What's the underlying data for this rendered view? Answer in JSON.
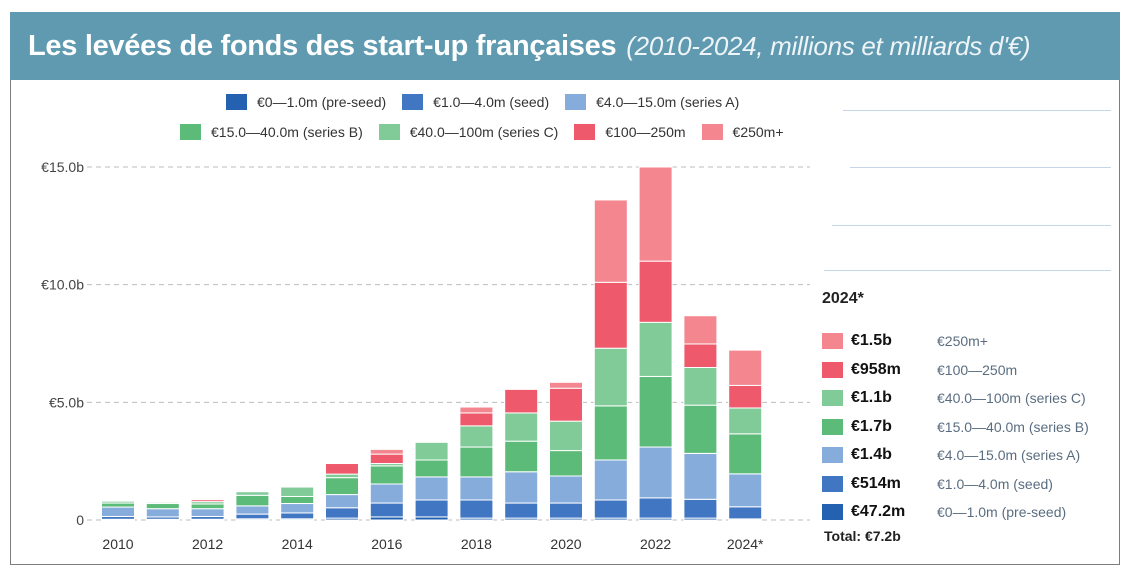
{
  "header": {
    "title": "Les levées de fonds des start-up françaises",
    "subtitle": "(2010-2024, millions et milliards d'€)"
  },
  "chart_data": {
    "type": "bar",
    "stacked": true,
    "title": "Les levées de fonds des start-up françaises",
    "subtitle": "(2010-2024, millions et milliards d'€)",
    "xlabel": "",
    "ylabel": "",
    "unit": "€ billions",
    "ylim": [
      0,
      15
    ],
    "yticks": [
      {
        "value": 0,
        "label": "0"
      },
      {
        "value": 5,
        "label": "€5.0b"
      },
      {
        "value": 10,
        "label": "€10.0b"
      },
      {
        "value": 15,
        "label": "€15.0b"
      }
    ],
    "grid": true,
    "legend_position": "top",
    "categories": [
      "2010",
      "2011",
      "2012",
      "2013",
      "2014",
      "2015",
      "2016",
      "2017",
      "2018",
      "2019",
      "2020",
      "2021",
      "2022",
      "2023",
      "2024*"
    ],
    "xtick_labels": [
      {
        "index": 0,
        "label": "2010"
      },
      {
        "index": 2,
        "label": "2012"
      },
      {
        "index": 4,
        "label": "2014"
      },
      {
        "index": 6,
        "label": "2016"
      },
      {
        "index": 8,
        "label": "2018"
      },
      {
        "index": 10,
        "label": "2020"
      },
      {
        "index": 12,
        "label": "2022"
      },
      {
        "index": 14,
        "label": "2024*"
      }
    ],
    "series": [
      {
        "name": "€0—1.0m (pre-seed)",
        "color": "#2461b0",
        "values": [
          0.03,
          0.03,
          0.03,
          0.05,
          0.05,
          0.08,
          0.13,
          0.13,
          0.08,
          0.08,
          0.08,
          0.08,
          0.08,
          0.08,
          0.0472
        ]
      },
      {
        "name": "€1.0—4.0m (seed)",
        "color": "#4076c2",
        "values": [
          0.12,
          0.1,
          0.12,
          0.2,
          0.25,
          0.44,
          0.59,
          0.72,
          0.77,
          0.64,
          0.64,
          0.77,
          0.86,
          0.8,
          0.514
        ]
      },
      {
        "name": "€4.0—15.0m (series A)",
        "color": "#86acdb",
        "values": [
          0.4,
          0.35,
          0.33,
          0.35,
          0.4,
          0.56,
          0.81,
          0.98,
          0.98,
          1.33,
          1.15,
          1.7,
          2.16,
          1.95,
          1.4
        ]
      },
      {
        "name": "€15.0—40.0m (series B)",
        "color": "#5dbb7a",
        "values": [
          0.17,
          0.22,
          0.2,
          0.45,
          0.3,
          0.72,
          0.77,
          0.72,
          1.27,
          1.3,
          1.08,
          2.3,
          3.0,
          2.05,
          1.7
        ]
      },
      {
        "name": "€40.0—100m (series C)",
        "color": "#80cb98",
        "values": [
          0.08,
          0.05,
          0.1,
          0.15,
          0.4,
          0.15,
          0.1,
          0.75,
          0.9,
          1.2,
          1.25,
          2.45,
          2.3,
          1.6,
          1.1
        ]
      },
      {
        "name": "€100—250m",
        "color": "#ee5a6c",
        "values": [
          0,
          0,
          0.08,
          0,
          0,
          0.45,
          0.4,
          0,
          0.55,
          1.0,
          1.4,
          2.8,
          2.6,
          1.0,
          0.958
        ]
      },
      {
        "name": "€250m+",
        "color": "#f4868f",
        "values": [
          0,
          0,
          0,
          0,
          0,
          0,
          0.2,
          0,
          0.25,
          0,
          0.25,
          3.5,
          4.0,
          1.2,
          1.5
        ]
      }
    ],
    "annotations": {
      "year": "2024*",
      "total": "Total: €7.2b"
    }
  },
  "legend_top": {
    "row1": [
      {
        "label": "€0—1.0m (pre-seed)",
        "color": "#2461b0"
      },
      {
        "label": "€1.0—4.0m (seed)",
        "color": "#4076c2"
      },
      {
        "label": "€4.0—15.0m (series A)",
        "color": "#86acdb"
      }
    ],
    "row2": [
      {
        "label": "€15.0—40.0m (series B)",
        "color": "#5dbb7a"
      },
      {
        "label": "€40.0—100m (series C)",
        "color": "#80cb98"
      },
      {
        "label": "€100—250m",
        "color": "#ee5a6c"
      },
      {
        "label": "€250m+",
        "color": "#f4868f"
      }
    ]
  },
  "side_panel": {
    "year": "2024*",
    "rows": [
      {
        "value": "€1.5b",
        "label": "€250m+",
        "color": "#f4868f"
      },
      {
        "value": "€958m",
        "label": "€100—250m",
        "color": "#ee5a6c"
      },
      {
        "value": "€1.1b",
        "label": "€40.0—100m (series C)",
        "color": "#80cb98"
      },
      {
        "value": "€1.7b",
        "label": "€15.0—40.0m (series B)",
        "color": "#5dbb7a"
      },
      {
        "value": "€1.4b",
        "label": "€4.0—15.0m (series A)",
        "color": "#86acdb"
      },
      {
        "value": "€514m",
        "label": "€1.0—4.0m (seed)",
        "color": "#4076c2"
      },
      {
        "value": "€47.2m",
        "label": "€0—1.0m (pre-seed)",
        "color": "#2461b0"
      }
    ],
    "total": "Total: €7.2b"
  }
}
